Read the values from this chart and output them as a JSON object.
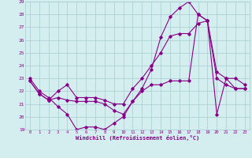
{
  "xlabel": "Windchill (Refroidissement éolien,°C)",
  "x_hours": [
    0,
    1,
    2,
    3,
    4,
    5,
    6,
    7,
    8,
    9,
    10,
    11,
    12,
    13,
    14,
    15,
    16,
    17,
    18,
    19,
    20,
    21,
    22,
    23
  ],
  "line1": [
    23,
    22,
    21.5,
    20.8,
    20.2,
    19,
    19.2,
    19.2,
    19,
    19.5,
    20,
    21.2,
    22.2,
    23.7,
    26.2,
    27.8,
    28.5,
    29,
    28,
    27.5,
    20.2,
    23,
    22.2,
    22.2
  ],
  "line2": [
    22.8,
    21.8,
    21.3,
    21.5,
    21.3,
    21.2,
    21.2,
    21.2,
    21.0,
    20.5,
    20.2,
    21.2,
    22.0,
    22.5,
    22.5,
    22.8,
    22.8,
    22.8,
    28.0,
    27.5,
    23.0,
    22.5,
    22.2,
    22.2
  ],
  "line3": [
    22.8,
    21.8,
    21.3,
    22.0,
    22.5,
    21.5,
    21.5,
    21.5,
    21.3,
    21.0,
    21.0,
    22.2,
    23.0,
    24.0,
    25.0,
    26.3,
    26.5,
    26.5,
    27.3,
    27.5,
    23.5,
    23.0,
    23.0,
    22.5
  ],
  "line_color": "#880088",
  "bg_color": "#d4eef0",
  "grid_color": "#a8ccd0",
  "spine_color": "#7a7aaa",
  "ylim_min": 19,
  "ylim_max": 29,
  "xlim_min": 0,
  "xlim_max": 23
}
